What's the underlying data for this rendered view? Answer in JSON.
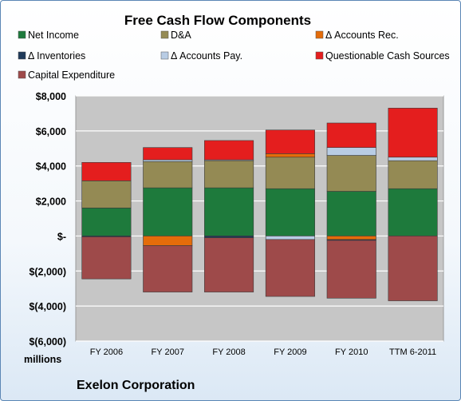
{
  "chart_data": {
    "type": "bar",
    "stacked": true,
    "title": "Free Cash Flow Components",
    "units_label": "millions",
    "company_label": "Exelon Corporation",
    "categories": [
      "FY 2006",
      "FY 2007",
      "FY 2008",
      "FY 2009",
      "FY 2010",
      "TTM 6-2011"
    ],
    "ylim": [
      -6000,
      8000
    ],
    "yticks": [
      8000,
      6000,
      4000,
      2000,
      0,
      -2000,
      -4000,
      -6000
    ],
    "ytick_labels": [
      "$8,000",
      "$6,000",
      "$4,000",
      "$2,000",
      "$-",
      "$(2,000)",
      "$(4,000)",
      "$(6,000)"
    ],
    "grid": true,
    "legend_position": "top",
    "series": [
      {
        "name": "Net Income",
        "color": "#1e7a3c",
        "values": [
          1600,
          2750,
          2750,
          2700,
          2550,
          2700
        ]
      },
      {
        "name": "D&A",
        "color": "#948a54",
        "values": [
          1550,
          1500,
          1550,
          1800,
          2050,
          1600
        ]
      },
      {
        "name": "Δ Accounts Rec.",
        "color": "#e46c0a",
        "values": [
          0,
          -550,
          0,
          200,
          -200,
          0
        ]
      },
      {
        "name": "Δ Inventories",
        "color": "#1f3a5a",
        "values": [
          -50,
          0,
          -100,
          0,
          -50,
          0
        ]
      },
      {
        "name": "Δ Accounts Pay.",
        "color": "#b8cce4",
        "values": [
          0,
          100,
          50,
          -200,
          450,
          200
        ]
      },
      {
        "name": "Questionable Cash Sources",
        "color": "#e41e1e",
        "values": [
          1050,
          700,
          1100,
          1350,
          1400,
          2800
        ]
      },
      {
        "name": "Capital Expenditure",
        "color": "#9e4a4a",
        "values": [
          -2400,
          -2650,
          -3100,
          -3250,
          -3300,
          -3700
        ]
      }
    ]
  }
}
